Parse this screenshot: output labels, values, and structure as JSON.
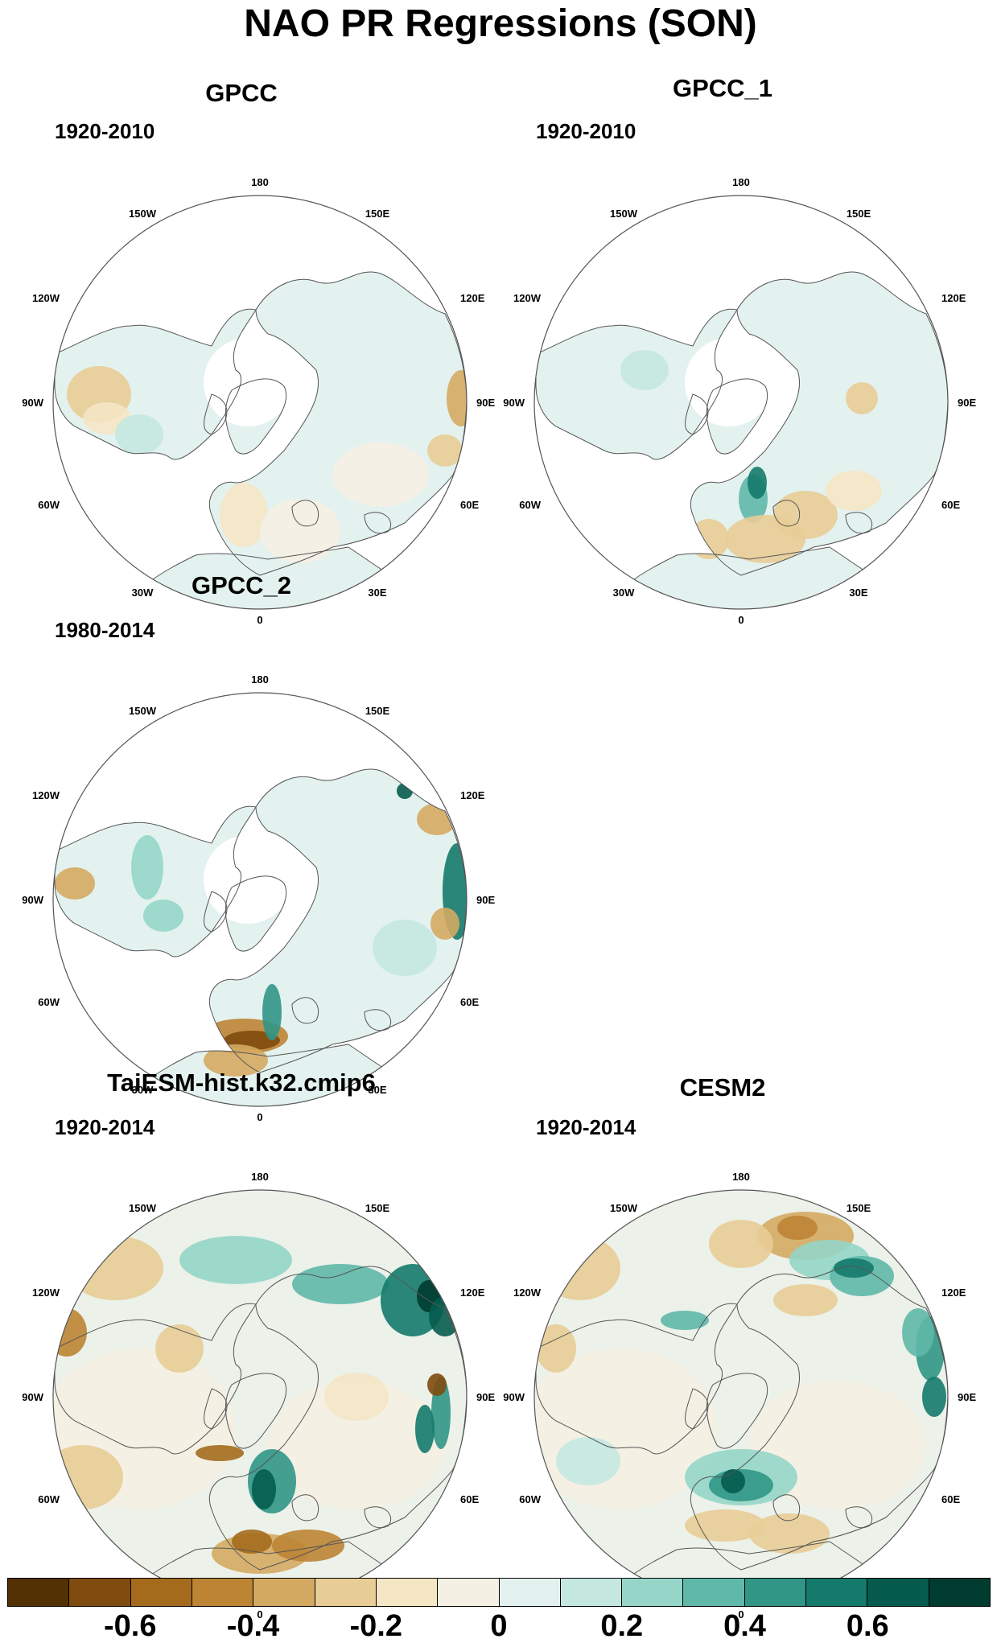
{
  "title": "NAO PR Regressions (SON)",
  "longitude_labels": {
    "top": "180",
    "bottom": "0",
    "left": "90W",
    "right": "90E",
    "upper_left_1": "150W",
    "upper_left_2": "120W",
    "lower_left_1": "60W",
    "lower_left_2": "30W",
    "upper_right_1": "150E",
    "upper_right_2": "120E",
    "lower_right_1": "60E",
    "lower_right_2": "30E"
  },
  "panels": [
    {
      "id": "gpcc",
      "title": "GPCC",
      "period": "1920-2010",
      "data_type": "land-only observations",
      "ocean_masked": true,
      "pattern": "mostly weak, slight negative over Europe"
    },
    {
      "id": "gpcc1",
      "title": "GPCC_1",
      "period": "1920-2010",
      "data_type": "land-only observations",
      "ocean_masked": true,
      "pattern": "positive over Scandinavia, negative over southern Europe"
    },
    {
      "id": "gpcc2",
      "title": "GPCC_2",
      "period": "1980-2014",
      "data_type": "land-only observations",
      "ocean_masked": true,
      "pattern": "strong negative over western Europe, positive over Norway and East Asia"
    },
    {
      "id": "taiesm",
      "title": "TaiESM-hist.k32.cmip6",
      "period": "1920-2014",
      "data_type": "model",
      "ocean_masked": false,
      "pattern": "positive dipole northern Europe, negative southern Europe / Mediterranean"
    },
    {
      "id": "cesm2",
      "title": "CESM2",
      "period": "1920-2014",
      "data_type": "model",
      "ocean_masked": false,
      "pattern": "positive over Scandinavia, negative over Mediterranean"
    }
  ],
  "colorbar": {
    "colors": [
      "#543005",
      "#7f4b0f",
      "#a46b1d",
      "#bd8434",
      "#d4aa62",
      "#e8cd96",
      "#f5e6c5",
      "#f5f0e4",
      "#e3f2ef",
      "#c4e8e0",
      "#95d6c8",
      "#5fb8a8",
      "#319686",
      "#147a6c",
      "#055c4e",
      "#003c30"
    ],
    "tick_labels": [
      "-0.6",
      "-0.4",
      "-0.2",
      "0",
      "0.2",
      "0.4",
      "0.6"
    ]
  }
}
